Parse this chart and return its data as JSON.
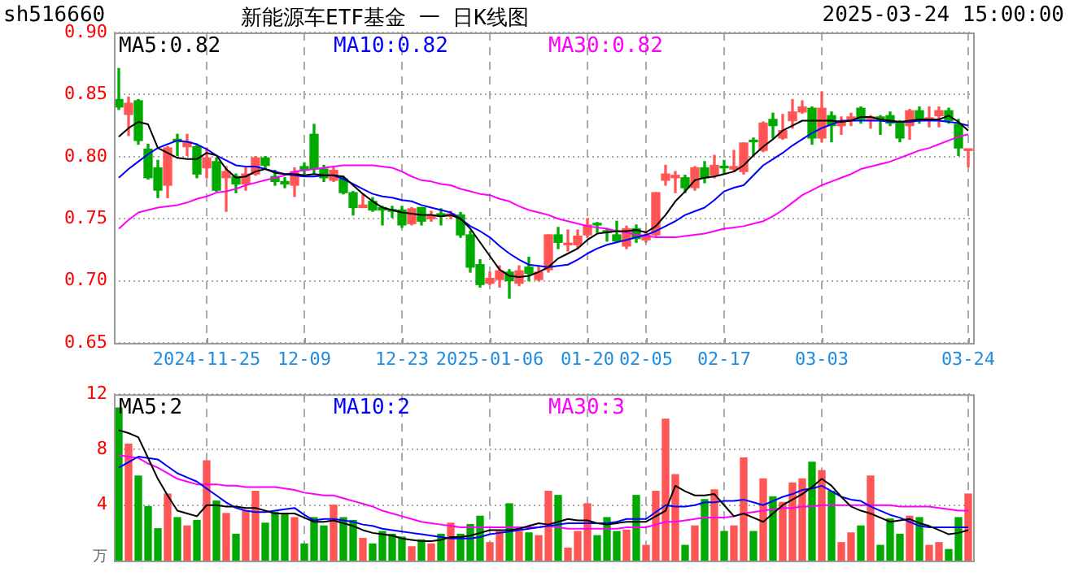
{
  "chart_data": [
    {
      "type": "candlestick",
      "title": "新能源车ETF基金 一 日K线图",
      "annotations": [
        "sh516660",
        "2025-03-24 15:00:00"
      ],
      "categories": [
        null,
        null,
        null,
        null,
        null,
        null,
        null,
        null,
        null,
        "2024-11-25",
        null,
        null,
        null,
        null,
        null,
        null,
        null,
        null,
        null,
        "12-09",
        null,
        null,
        null,
        null,
        null,
        null,
        null,
        null,
        null,
        "12-23",
        null,
        null,
        null,
        null,
        null,
        null,
        null,
        null,
        "2025-01-06",
        null,
        null,
        null,
        null,
        null,
        null,
        null,
        null,
        null,
        "01-20",
        null,
        null,
        null,
        null,
        null,
        "02-05",
        null,
        null,
        null,
        null,
        null,
        null,
        null,
        "02-17",
        null,
        null,
        null,
        null,
        null,
        null,
        null,
        null,
        null,
        "03-03",
        null,
        null,
        null,
        null,
        null,
        null,
        null,
        null,
        null,
        null,
        null,
        null,
        null,
        null,
        "03-24"
      ],
      "ohlc": [
        [
          0.846,
          0.871,
          0.838,
          0.84
        ],
        [
          0.834,
          0.848,
          0.817,
          0.843
        ],
        [
          0.845,
          0.846,
          0.81,
          0.813
        ],
        [
          0.806,
          0.81,
          0.782,
          0.783
        ],
        [
          0.791,
          0.797,
          0.767,
          0.773
        ],
        [
          0.777,
          0.808,
          0.767,
          0.807
        ],
        [
          0.814,
          0.818,
          0.801,
          0.812
        ],
        [
          0.808,
          0.818,
          0.801,
          0.812
        ],
        [
          0.808,
          0.81,
          0.783,
          0.786
        ],
        [
          0.791,
          0.807,
          0.783,
          0.799
        ],
        [
          0.796,
          0.799,
          0.772,
          0.773
        ],
        [
          0.783,
          0.792,
          0.756,
          0.788
        ],
        [
          0.784,
          0.786,
          0.771,
          0.778
        ],
        [
          0.778,
          0.791,
          0.773,
          0.786
        ],
        [
          0.786,
          0.8,
          0.785,
          0.799
        ],
        [
          0.799,
          0.8,
          0.79,
          0.793
        ],
        [
          0.784,
          0.789,
          0.777,
          0.78
        ],
        [
          0.78,
          0.783,
          0.775,
          0.778
        ],
        [
          0.777,
          0.791,
          0.768,
          0.788
        ],
        [
          0.792,
          0.795,
          0.786,
          0.789
        ],
        [
          0.818,
          0.826,
          0.786,
          0.79
        ],
        [
          0.79,
          0.793,
          0.78,
          0.783
        ],
        [
          0.781,
          0.791,
          0.78,
          0.789
        ],
        [
          0.782,
          0.784,
          0.77,
          0.771
        ],
        [
          0.771,
          0.772,
          0.753,
          0.759
        ],
        [
          0.759,
          0.77,
          0.759,
          0.761
        ],
        [
          0.764,
          0.767,
          0.756,
          0.757
        ],
        [
          0.759,
          0.76,
          0.745,
          0.757
        ],
        [
          0.757,
          0.76,
          0.751,
          0.756
        ],
        [
          0.757,
          0.76,
          0.743,
          0.745
        ],
        [
          0.746,
          0.759,
          0.745,
          0.758
        ],
        [
          0.759,
          0.759,
          0.745,
          0.748
        ],
        [
          0.75,
          0.756,
          0.748,
          0.753
        ],
        [
          0.754,
          0.758,
          0.745,
          0.752
        ],
        [
          0.752,
          0.756,
          0.75,
          0.754
        ],
        [
          0.753,
          0.755,
          0.735,
          0.737
        ],
        [
          0.737,
          0.74,
          0.707,
          0.711
        ],
        [
          0.713,
          0.717,
          0.695,
          0.697
        ],
        [
          0.698,
          0.707,
          0.697,
          0.702
        ],
        [
          0.701,
          0.712,
          0.695,
          0.708
        ],
        [
          0.707,
          0.709,
          0.686,
          0.7
        ],
        [
          0.698,
          0.712,
          0.696,
          0.708
        ],
        [
          0.711,
          0.719,
          0.7,
          0.706
        ],
        [
          0.701,
          0.711,
          0.7,
          0.707
        ],
        [
          0.709,
          0.737,
          0.707,
          0.737
        ],
        [
          0.737,
          0.743,
          0.726,
          0.731
        ],
        [
          0.729,
          0.741,
          0.724,
          0.73
        ],
        [
          0.729,
          0.741,
          0.726,
          0.736
        ],
        [
          0.737,
          0.75,
          0.735,
          0.745
        ],
        [
          0.746,
          0.747,
          0.739,
          0.745
        ],
        [
          0.74,
          0.742,
          0.732,
          0.739
        ],
        [
          0.737,
          0.748,
          0.731,
          0.732
        ],
        [
          0.728,
          0.744,
          0.726,
          0.742
        ],
        [
          0.742,
          0.745,
          0.731,
          0.734
        ],
        [
          0.733,
          0.74,
          0.731,
          0.737
        ],
        [
          0.737,
          0.771,
          0.736,
          0.771
        ],
        [
          0.781,
          0.793,
          0.777,
          0.786
        ],
        [
          0.783,
          0.788,
          0.771,
          0.785
        ],
        [
          0.783,
          0.785,
          0.771,
          0.775
        ],
        [
          0.775,
          0.792,
          0.773,
          0.791
        ],
        [
          0.791,
          0.796,
          0.779,
          0.783
        ],
        [
          0.785,
          0.801,
          0.783,
          0.793
        ],
        [
          0.792,
          0.797,
          0.786,
          0.791
        ],
        [
          0.79,
          0.805,
          0.788,
          0.792
        ],
        [
          0.788,
          0.811,
          0.786,
          0.811
        ],
        [
          0.813,
          0.815,
          0.801,
          0.812
        ],
        [
          0.805,
          0.828,
          0.804,
          0.827
        ],
        [
          0.83,
          0.835,
          0.815,
          0.825
        ],
        [
          0.815,
          0.834,
          0.814,
          0.821
        ],
        [
          0.829,
          0.846,
          0.823,
          0.836
        ],
        [
          0.836,
          0.845,
          0.835,
          0.84
        ],
        [
          0.839,
          0.84,
          0.81,
          0.815
        ],
        [
          0.815,
          0.852,
          0.812,
          0.839
        ],
        [
          0.833,
          0.836,
          0.812,
          0.825
        ],
        [
          0.825,
          0.832,
          0.818,
          0.829
        ],
        [
          0.829,
          0.835,
          0.825,
          0.832
        ],
        [
          0.839,
          0.84,
          0.827,
          0.83
        ],
        [
          0.83,
          0.833,
          0.823,
          0.832
        ],
        [
          0.832,
          0.833,
          0.818,
          0.83
        ],
        [
          0.833,
          0.836,
          0.825,
          0.827
        ],
        [
          0.827,
          0.829,
          0.812,
          0.815
        ],
        [
          0.825,
          0.838,
          0.814,
          0.837
        ],
        [
          0.837,
          0.84,
          0.827,
          0.83
        ],
        [
          0.83,
          0.84,
          0.824,
          0.831
        ],
        [
          0.833,
          0.84,
          0.824,
          0.837
        ],
        [
          0.837,
          0.839,
          0.827,
          0.829
        ],
        [
          0.826,
          0.83,
          0.801,
          0.807
        ],
        [
          0.805,
          0.806,
          0.792,
          0.806
        ]
      ],
      "colors": [
        "#00aa00",
        "#ff5555",
        "#00aa00",
        "#00aa00",
        "#00aa00",
        "#ff5555",
        "#00aa00",
        "#ff5555",
        "#00aa00",
        "#ff5555",
        "#00aa00",
        "#ff5555",
        "#00aa00",
        "#ff5555",
        "#ff5555",
        "#00aa00",
        "#00aa00",
        "#00aa00",
        "#ff5555",
        "#00aa00",
        "#00aa00",
        "#00aa00",
        "#ff5555",
        "#00aa00",
        "#00aa00",
        "#ff5555",
        "#00aa00",
        "#00aa00",
        "#00aa00",
        "#00aa00",
        "#ff5555",
        "#00aa00",
        "#ff5555",
        "#00aa00",
        "#ff5555",
        "#00aa00",
        "#00aa00",
        "#00aa00",
        "#ff5555",
        "#ff5555",
        "#00aa00",
        "#ff5555",
        "#00aa00",
        "#ff5555",
        "#ff5555",
        "#00aa00",
        "#ff5555",
        "#ff5555",
        "#ff5555",
        "#00aa00",
        "#00aa00",
        "#00aa00",
        "#ff5555",
        "#00aa00",
        "#ff5555",
        "#ff5555",
        "#ff5555",
        "#ff5555",
        "#00aa00",
        "#ff5555",
        "#00aa00",
        "#ff5555",
        "#00aa00",
        "#ff5555",
        "#ff5555",
        "#00aa00",
        "#ff5555",
        "#00aa00",
        "#ff5555",
        "#ff5555",
        "#ff5555",
        "#00aa00",
        "#ff5555",
        "#00aa00",
        "#ff5555",
        "#ff5555",
        "#00aa00",
        "#ff5555",
        "#00aa00",
        "#00aa00",
        "#00aa00",
        "#ff5555",
        "#00aa00",
        "#ff5555",
        "#ff5555",
        "#00aa00",
        "#00aa00",
        "#ff5555"
      ],
      "series": [
        {
          "type": "line",
          "name": "MA5:0.82",
          "color": "#000000",
          "values": [
            0.816,
            0.823,
            0.828,
            0.826,
            0.807,
            0.803,
            0.799,
            0.798,
            0.798,
            0.803,
            0.801,
            0.79,
            0.783,
            0.784,
            0.788,
            0.79,
            0.787,
            0.786,
            0.786,
            0.785,
            0.786,
            0.785,
            0.785,
            0.784,
            0.777,
            0.77,
            0.764,
            0.759,
            0.757,
            0.755,
            0.754,
            0.753,
            0.753,
            0.752,
            0.753,
            0.75,
            0.742,
            0.731,
            0.72,
            0.709,
            0.704,
            0.703,
            0.704,
            0.707,
            0.711,
            0.718,
            0.722,
            0.726,
            0.733,
            0.738,
            0.739,
            0.74,
            0.74,
            0.741,
            0.739,
            0.744,
            0.753,
            0.764,
            0.772,
            0.781,
            0.783,
            0.784,
            0.786,
            0.788,
            0.793,
            0.801,
            0.808,
            0.814,
            0.821,
            0.825,
            0.829,
            0.829,
            0.829,
            0.829,
            0.828,
            0.829,
            0.832,
            0.832,
            0.83,
            0.829,
            0.828,
            0.829,
            0.83,
            0.83,
            0.83,
            0.833,
            0.828,
            0.821
          ]
        },
        {
          "type": "line",
          "name": "MA10:0.82",
          "color": "#0000ff",
          "values": [
            0.783,
            0.79,
            0.796,
            0.802,
            0.807,
            0.81,
            0.813,
            0.812,
            0.81,
            0.806,
            0.801,
            0.797,
            0.793,
            0.792,
            0.792,
            0.79,
            0.788,
            0.786,
            0.785,
            0.784,
            0.784,
            0.785,
            0.785,
            0.782,
            0.778,
            0.774,
            0.77,
            0.768,
            0.767,
            0.765,
            0.764,
            0.761,
            0.759,
            0.757,
            0.755,
            0.75,
            0.744,
            0.74,
            0.735,
            0.728,
            0.722,
            0.717,
            0.713,
            0.712,
            0.711,
            0.712,
            0.713,
            0.717,
            0.722,
            0.726,
            0.729,
            0.731,
            0.733,
            0.735,
            0.737,
            0.74,
            0.744,
            0.748,
            0.753,
            0.756,
            0.759,
            0.765,
            0.772,
            0.775,
            0.777,
            0.785,
            0.793,
            0.798,
            0.803,
            0.809,
            0.814,
            0.819,
            0.823,
            0.826,
            0.829,
            0.829,
            0.829,
            0.829,
            0.829,
            0.828,
            0.828,
            0.828,
            0.829,
            0.829,
            0.829,
            0.828,
            0.827,
            0.825
          ]
        },
        {
          "type": "line",
          "name": "MA30:0.82",
          "color": "#ff00ff",
          "values": [
            0.742,
            0.749,
            0.755,
            0.757,
            0.759,
            0.76,
            0.761,
            0.763,
            0.766,
            0.768,
            0.771,
            0.772,
            0.774,
            0.777,
            0.779,
            0.781,
            0.783,
            0.785,
            0.788,
            0.789,
            0.79,
            0.791,
            0.792,
            0.793,
            0.793,
            0.793,
            0.793,
            0.792,
            0.791,
            0.788,
            0.784,
            0.781,
            0.78,
            0.778,
            0.777,
            0.774,
            0.772,
            0.77,
            0.769,
            0.766,
            0.764,
            0.76,
            0.757,
            0.755,
            0.753,
            0.75,
            0.748,
            0.746,
            0.744,
            0.743,
            0.742,
            0.74,
            0.739,
            0.737,
            0.736,
            0.735,
            0.735,
            0.735,
            0.736,
            0.737,
            0.738,
            0.74,
            0.742,
            0.743,
            0.744,
            0.746,
            0.748,
            0.752,
            0.757,
            0.763,
            0.769,
            0.773,
            0.777,
            0.78,
            0.783,
            0.786,
            0.79,
            0.792,
            0.794,
            0.796,
            0.799,
            0.802,
            0.805,
            0.807,
            0.81,
            0.813,
            0.816,
            0.818
          ]
        }
      ],
      "ylim": [
        0.65,
        0.9
      ],
      "yticks": [
        0.65,
        {
          "value": 0.7,
          "label": "0.70"
        },
        0.75,
        {
          "value": 0.8,
          "label": "0.80"
        },
        0.85,
        {
          "value": 0.9,
          "label": "0.90"
        }
      ],
      "grid": true,
      "legend": "top left",
      "marker": "none"
    },
    {
      "type": "bar",
      "ylabel": "万",
      "categories": [
        null,
        null,
        null,
        null,
        null,
        null,
        null,
        null,
        null,
        null,
        null,
        null,
        null,
        null,
        null,
        null,
        null,
        null,
        null,
        null,
        null,
        null,
        null,
        null,
        null,
        null,
        null,
        null,
        null,
        null,
        null,
        null,
        null,
        null,
        null,
        null,
        null,
        null,
        null,
        null,
        null,
        null,
        null,
        null,
        null,
        null,
        null,
        null,
        null,
        null,
        null,
        null,
        null,
        null,
        null,
        null,
        null,
        null,
        null,
        null,
        null,
        null,
        null,
        null,
        null,
        null,
        null,
        null,
        null,
        null,
        null,
        null,
        null,
        null,
        null,
        null,
        null,
        null,
        null,
        null,
        null,
        null,
        null,
        null,
        null,
        null,
        null,
        null
      ],
      "series": [
        {
          "type": "bar",
          "colors": [
            "#00aa00",
            "#ff5555",
            "#00aa00",
            "#00aa00",
            "#00aa00",
            "#ff5555",
            "#00aa00",
            "#ff5555",
            "#00aa00",
            "#ff5555",
            "#00aa00",
            "#ff5555",
            "#00aa00",
            "#ff5555",
            "#ff5555",
            "#00aa00",
            "#00aa00",
            "#00aa00",
            "#ff5555",
            "#00aa00",
            "#00aa00",
            "#00aa00",
            "#ff5555",
            "#00aa00",
            "#00aa00",
            "#ff5555",
            "#00aa00",
            "#00aa00",
            "#00aa00",
            "#00aa00",
            "#ff5555",
            "#00aa00",
            "#ff5555",
            "#00aa00",
            "#ff5555",
            "#00aa00",
            "#00aa00",
            "#00aa00",
            "#ff5555",
            "#ff5555",
            "#00aa00",
            "#ff5555",
            "#00aa00",
            "#ff5555",
            "#ff5555",
            "#00aa00",
            "#ff5555",
            "#ff5555",
            "#ff5555",
            "#00aa00",
            "#00aa00",
            "#00aa00",
            "#ff5555",
            "#00aa00",
            "#ff5555",
            "#ff5555",
            "#ff5555",
            "#ff5555",
            "#00aa00",
            "#ff5555",
            "#00aa00",
            "#ff5555",
            "#00aa00",
            "#ff5555",
            "#ff5555",
            "#00aa00",
            "#ff5555",
            "#00aa00",
            "#ff5555",
            "#ff5555",
            "#ff5555",
            "#00aa00",
            "#ff5555",
            "#00aa00",
            "#ff5555",
            "#ff5555",
            "#00aa00",
            "#ff5555",
            "#00aa00",
            "#00aa00",
            "#00aa00",
            "#ff5555",
            "#00aa00",
            "#ff5555",
            "#ff5555",
            "#00aa00",
            "#00aa00",
            "#ff5555"
          ],
          "values": [
            11.0,
            8.4,
            6.1,
            3.9,
            2.3,
            4.8,
            3.1,
            2.5,
            2.9,
            7.2,
            4.3,
            3.4,
            1.9,
            3.6,
            5.0,
            2.7,
            3.5,
            3.4,
            3.1,
            1.2,
            3.1,
            2.5,
            4.0,
            3.1,
            2.9,
            1.6,
            1.2,
            2.1,
            1.9,
            1.7,
            1.0,
            1.5,
            1.2,
            1.9,
            2.7,
            1.9,
            2.6,
            3.2,
            1.3,
            2.1,
            4.1,
            2.1,
            2.0,
            1.8,
            5.0,
            4.7,
            0.9,
            2.1,
            4.1,
            1.8,
            3.1,
            2.1,
            2.2,
            4.7,
            1.1,
            5.0,
            10.2,
            6.2,
            1.1,
            2.5,
            4.4,
            5.1,
            2.1,
            2.5,
            7.4,
            2.1,
            5.9,
            4.6,
            4.2,
            5.6,
            5.9,
            7.1,
            6.5,
            5.0,
            1.3,
            2.0,
            2.5,
            6.1,
            1.1,
            3.0,
            1.9,
            3.2,
            3.1,
            1.1,
            1.3,
            0.8,
            3.1,
            4.8
          ]
        },
        {
          "type": "line",
          "name": "MA5:2",
          "color": "#000000",
          "values": [
            9.4,
            9.2,
            8.9,
            7.4,
            5.9,
            4.7,
            3.6,
            3.4,
            3.2,
            4.0,
            4.0,
            3.9,
            3.9,
            3.8,
            3.8,
            3.6,
            3.4,
            3.4,
            3.4,
            3.1,
            2.8,
            2.8,
            2.9,
            2.7,
            2.5,
            2.2,
            2.0,
            1.9,
            1.8,
            1.6,
            1.5,
            1.4,
            1.4,
            1.5,
            1.7,
            1.7,
            1.8,
            2.0,
            2.2,
            2.2,
            2.2,
            2.3,
            2.5,
            2.7,
            2.6,
            2.8,
            3.0,
            2.9,
            2.9,
            2.7,
            2.6,
            2.7,
            2.8,
            2.8,
            2.8,
            3.2,
            3.6,
            5.4,
            5.0,
            4.7,
            4.7,
            4.8,
            4.0,
            3.2,
            3.4,
            3.1,
            2.8,
            3.4,
            4.0,
            4.4,
            4.8,
            5.3,
            5.9,
            5.4,
            4.6,
            3.9,
            3.6,
            3.4,
            3.1,
            2.8,
            2.9,
            3.0,
            2.7,
            2.5,
            2.2,
            1.9,
            2.0,
            2.2
          ]
        },
        {
          "type": "line",
          "name": "MA10:2",
          "color": "#0000ff",
          "values": [
            6.7,
            7.1,
            7.5,
            7.4,
            7.3,
            6.8,
            6.3,
            6.0,
            5.7,
            5.2,
            4.7,
            4.2,
            3.8,
            3.6,
            3.5,
            3.5,
            3.6,
            3.7,
            3.8,
            3.3,
            2.9,
            3.0,
            3.0,
            2.9,
            2.8,
            2.6,
            2.5,
            2.3,
            2.2,
            2.1,
            2.0,
            1.9,
            1.8,
            1.7,
            1.6,
            1.6,
            1.6,
            1.7,
            1.9,
            2.0,
            2.1,
            2.2,
            2.3,
            2.4,
            2.5,
            2.6,
            2.7,
            2.7,
            2.7,
            2.7,
            2.7,
            2.8,
            3.0,
            3.0,
            3.0,
            3.5,
            4.0,
            3.9,
            3.9,
            4.0,
            4.2,
            4.2,
            4.3,
            4.3,
            4.4,
            4.2,
            4.0,
            4.3,
            4.6,
            4.8,
            5.1,
            5.2,
            5.4,
            5.0,
            4.6,
            4.4,
            4.3,
            3.9,
            3.6,
            3.3,
            3.1,
            2.8,
            2.5,
            2.4,
            2.4,
            2.4,
            2.4,
            2.4
          ]
        },
        {
          "type": "line",
          "name": "MA30:3",
          "color": "#ff00ff",
          "values": [
            7.6,
            7.5,
            7.4,
            7.0,
            6.7,
            6.3,
            5.9,
            5.7,
            5.5,
            5.5,
            5.5,
            5.4,
            5.4,
            5.3,
            5.3,
            5.3,
            5.3,
            5.2,
            5.1,
            4.9,
            4.8,
            4.7,
            4.7,
            4.5,
            4.3,
            4.1,
            3.9,
            3.6,
            3.4,
            3.2,
            3.0,
            2.8,
            2.7,
            2.6,
            2.5,
            2.4,
            2.4,
            2.4,
            2.4,
            2.4,
            2.4,
            2.4,
            2.4,
            2.4,
            2.5,
            2.4,
            2.3,
            2.3,
            2.3,
            2.3,
            2.3,
            2.3,
            2.4,
            2.4,
            2.4,
            2.6,
            2.8,
            2.8,
            2.9,
            3.0,
            3.1,
            3.1,
            3.1,
            3.2,
            3.4,
            3.5,
            3.6,
            3.7,
            3.8,
            3.8,
            3.9,
            3.9,
            4.0,
            4.0,
            4.0,
            4.0,
            4.0,
            4.0,
            4.0,
            4.0,
            3.9,
            3.9,
            3.9,
            3.9,
            3.8,
            3.7,
            3.6,
            3.6
          ]
        }
      ],
      "ylim": [
        0,
        12
      ],
      "yticks": [
        4,
        8,
        12
      ],
      "tick_labels": "y",
      "grid": true,
      "legend": "top left",
      "marker": "none"
    }
  ]
}
